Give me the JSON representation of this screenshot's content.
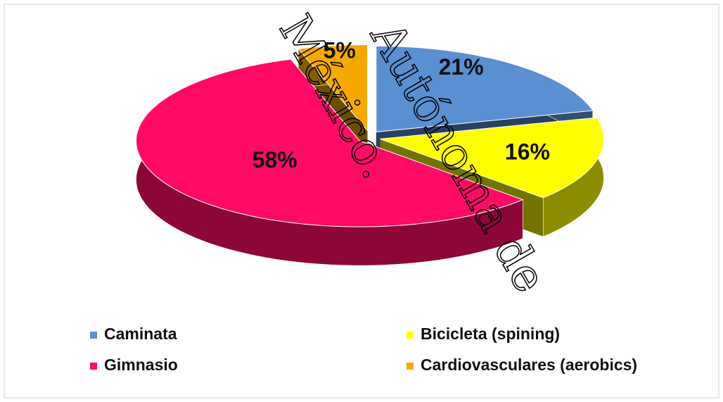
{
  "chart_data": {
    "type": "pie3d",
    "categories": [
      "Caminata",
      "Bicicleta (spining)",
      "Gimnasio",
      "Cardiovasculares (aerobics)"
    ],
    "values": [
      21,
      16,
      58,
      5
    ],
    "value_labels": [
      "21%",
      "16%",
      "58%",
      "5%"
    ],
    "colors": [
      "#5a8fd2",
      "#ffff00",
      "#ff0a66",
      "#f5a800"
    ],
    "legend": "bottom",
    "annotations": [
      "México.",
      "Autónoma de"
    ]
  }
}
